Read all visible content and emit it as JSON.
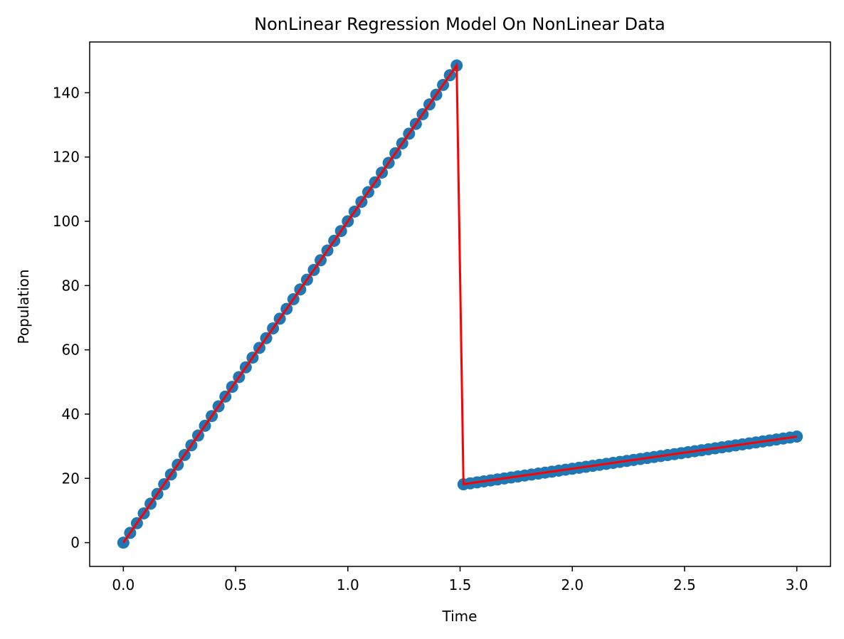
{
  "chart_data": {
    "type": "scatter",
    "title": "NonLinear Regression Model On NonLinear Data",
    "xlabel": "Time",
    "ylabel": "Population",
    "xlim": [
      -0.15,
      3.15
    ],
    "ylim": [
      -7.4,
      155.8
    ],
    "xticks": [
      0.0,
      0.5,
      1.0,
      1.5,
      2.0,
      2.5,
      3.0
    ],
    "xtick_labels": [
      "0.0",
      "0.5",
      "1.0",
      "1.5",
      "2.0",
      "2.5",
      "3.0"
    ],
    "yticks": [
      0,
      20,
      40,
      60,
      80,
      100,
      120,
      140
    ],
    "ytick_labels": [
      "0",
      "20",
      "40",
      "60",
      "80",
      "100",
      "120",
      "140"
    ],
    "grid": false,
    "colors": {
      "points": "#1f77b4",
      "fit": "#ff0000"
    },
    "series": [
      {
        "type": "scatter",
        "segments": [
          {
            "x_start": 0.0,
            "x_end": 1.4848,
            "count": 50,
            "slope": 100.0,
            "intercept": 0.0
          },
          {
            "x_start": 1.5152,
            "x_end": 3.0,
            "count": 50,
            "slope": 10.0,
            "intercept": 3.0
          }
        ]
      },
      {
        "type": "line",
        "points": [
          [
            0.0,
            0.0
          ],
          [
            1.4848,
            148.5
          ],
          [
            1.5152,
            18.2
          ],
          [
            3.0,
            33.0
          ]
        ]
      }
    ]
  }
}
